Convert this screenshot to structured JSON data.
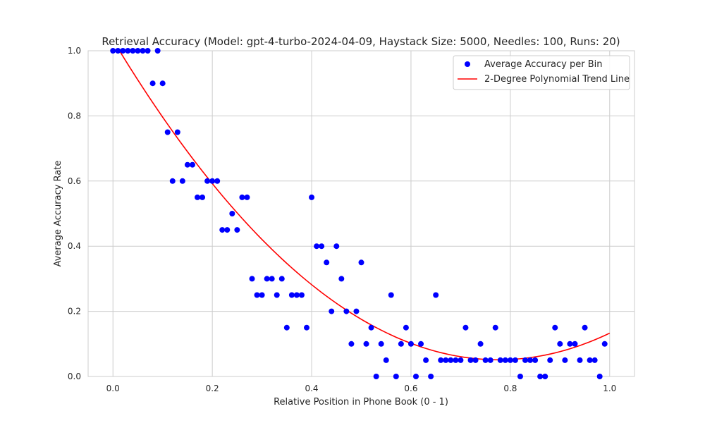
{
  "chart_data": {
    "type": "scatter",
    "title": "Retrieval Accuracy (Model: gpt-4-turbo-2024-04-09, Haystack Size: 5000, Needles: 100, Runs: 20)",
    "xlabel": "Relative Position in Phone Book (0 - 1)",
    "ylabel": "Average Accuracy Rate",
    "xlim": [
      -0.05,
      1.05
    ],
    "ylim": [
      0.0,
      1.0
    ],
    "x_ticks": [
      "0.0",
      "0.2",
      "0.4",
      "0.6",
      "0.8",
      "1.0"
    ],
    "y_ticks": [
      "0.0",
      "0.2",
      "0.4",
      "0.6",
      "0.8",
      "1.0"
    ],
    "grid": true,
    "legend_position": "top-right",
    "series": [
      {
        "name": "Average Accuracy per Bin",
        "kind": "scatter",
        "color": "#0000ff",
        "x": [
          0.0,
          0.01,
          0.02,
          0.03,
          0.04,
          0.05,
          0.06,
          0.07,
          0.08,
          0.09,
          0.1,
          0.11,
          0.12,
          0.13,
          0.14,
          0.15,
          0.16,
          0.17,
          0.18,
          0.19,
          0.2,
          0.21,
          0.22,
          0.23,
          0.24,
          0.25,
          0.26,
          0.27,
          0.28,
          0.29,
          0.3,
          0.31,
          0.32,
          0.33,
          0.34,
          0.35,
          0.36,
          0.37,
          0.38,
          0.39,
          0.4,
          0.41,
          0.42,
          0.43,
          0.44,
          0.45,
          0.46,
          0.47,
          0.48,
          0.49,
          0.5,
          0.51,
          0.52,
          0.53,
          0.54,
          0.55,
          0.56,
          0.57,
          0.58,
          0.59,
          0.6,
          0.61,
          0.62,
          0.63,
          0.64,
          0.65,
          0.66,
          0.67,
          0.68,
          0.69,
          0.7,
          0.71,
          0.72,
          0.73,
          0.74,
          0.75,
          0.76,
          0.77,
          0.78,
          0.79,
          0.8,
          0.81,
          0.82,
          0.83,
          0.84,
          0.85,
          0.86,
          0.87,
          0.88,
          0.89,
          0.9,
          0.91,
          0.92,
          0.93,
          0.94,
          0.95,
          0.96,
          0.97,
          0.98,
          0.99
        ],
        "y": [
          1.0,
          1.0,
          1.0,
          1.0,
          1.0,
          1.0,
          1.0,
          1.0,
          0.9,
          1.0,
          0.9,
          0.75,
          0.6,
          0.75,
          0.6,
          0.65,
          0.65,
          0.55,
          0.55,
          0.6,
          0.6,
          0.6,
          0.45,
          0.45,
          0.5,
          0.45,
          0.55,
          0.55,
          0.3,
          0.25,
          0.25,
          0.3,
          0.3,
          0.25,
          0.3,
          0.15,
          0.25,
          0.25,
          0.25,
          0.15,
          0.55,
          0.4,
          0.4,
          0.35,
          0.2,
          0.4,
          0.3,
          0.2,
          0.1,
          0.2,
          0.35,
          0.1,
          0.15,
          0.0,
          0.1,
          0.05,
          0.25,
          0.0,
          0.1,
          0.15,
          0.1,
          0.0,
          0.1,
          0.05,
          0.0,
          0.25,
          0.05,
          0.05,
          0.05,
          0.05,
          0.05,
          0.15,
          0.05,
          0.05,
          0.1,
          0.05,
          0.05,
          0.15,
          0.05,
          0.05,
          0.05,
          0.05,
          0.0,
          0.05,
          0.05,
          0.05,
          0.0,
          0.0,
          0.05,
          0.15,
          0.1,
          0.05,
          0.1,
          0.1,
          0.05,
          0.15,
          0.05,
          0.05,
          0.0,
          0.1
        ]
      },
      {
        "name": "2-Degree Polynomial Trend Line",
        "kind": "line",
        "color": "#ff0000",
        "x_start": 0.0,
        "x_end": 1.0,
        "samples": 101,
        "coefficients": [
          1.033,
          -2.53,
          1.63
        ]
      }
    ]
  }
}
